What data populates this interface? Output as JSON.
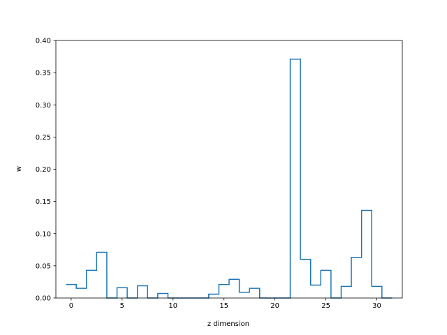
{
  "chart_data": {
    "type": "line",
    "style": "step-histogram",
    "title": "",
    "xlabel": "z dimension",
    "ylabel": "w",
    "xlim": [
      -1.5,
      32.5
    ],
    "ylim": [
      0,
      0.4
    ],
    "xticks": [
      0,
      5,
      10,
      15,
      20,
      25,
      30
    ],
    "xtick_labels": [
      "0",
      "5",
      "10",
      "15",
      "20",
      "25",
      "30"
    ],
    "yticks": [
      0.0,
      0.05,
      0.1,
      0.15,
      0.2,
      0.25,
      0.3,
      0.35,
      0.4
    ],
    "ytick_labels": [
      "0.00",
      "0.05",
      "0.10",
      "0.15",
      "0.20",
      "0.25",
      "0.30",
      "0.35",
      "0.40"
    ],
    "grid": false,
    "line_color": "#1f77b4",
    "series": [
      {
        "x": [
          0,
          1,
          2,
          3,
          4,
          5,
          6,
          7,
          8,
          9,
          10,
          11,
          12,
          13,
          14,
          15,
          16,
          17,
          18,
          19,
          20,
          21,
          22,
          23,
          24,
          25,
          26,
          27,
          28,
          29,
          30,
          31
        ],
        "values": [
          0.021,
          0.015,
          0.043,
          0.071,
          0.0,
          0.016,
          0.0,
          0.019,
          0.0,
          0.007,
          0.0,
          0.0,
          0.0,
          0.0,
          0.006,
          0.021,
          0.029,
          0.009,
          0.015,
          0.0,
          0.0,
          0.0,
          0.371,
          0.06,
          0.02,
          0.043,
          0.0,
          0.018,
          0.063,
          0.136,
          0.018,
          0.0
        ]
      }
    ]
  }
}
